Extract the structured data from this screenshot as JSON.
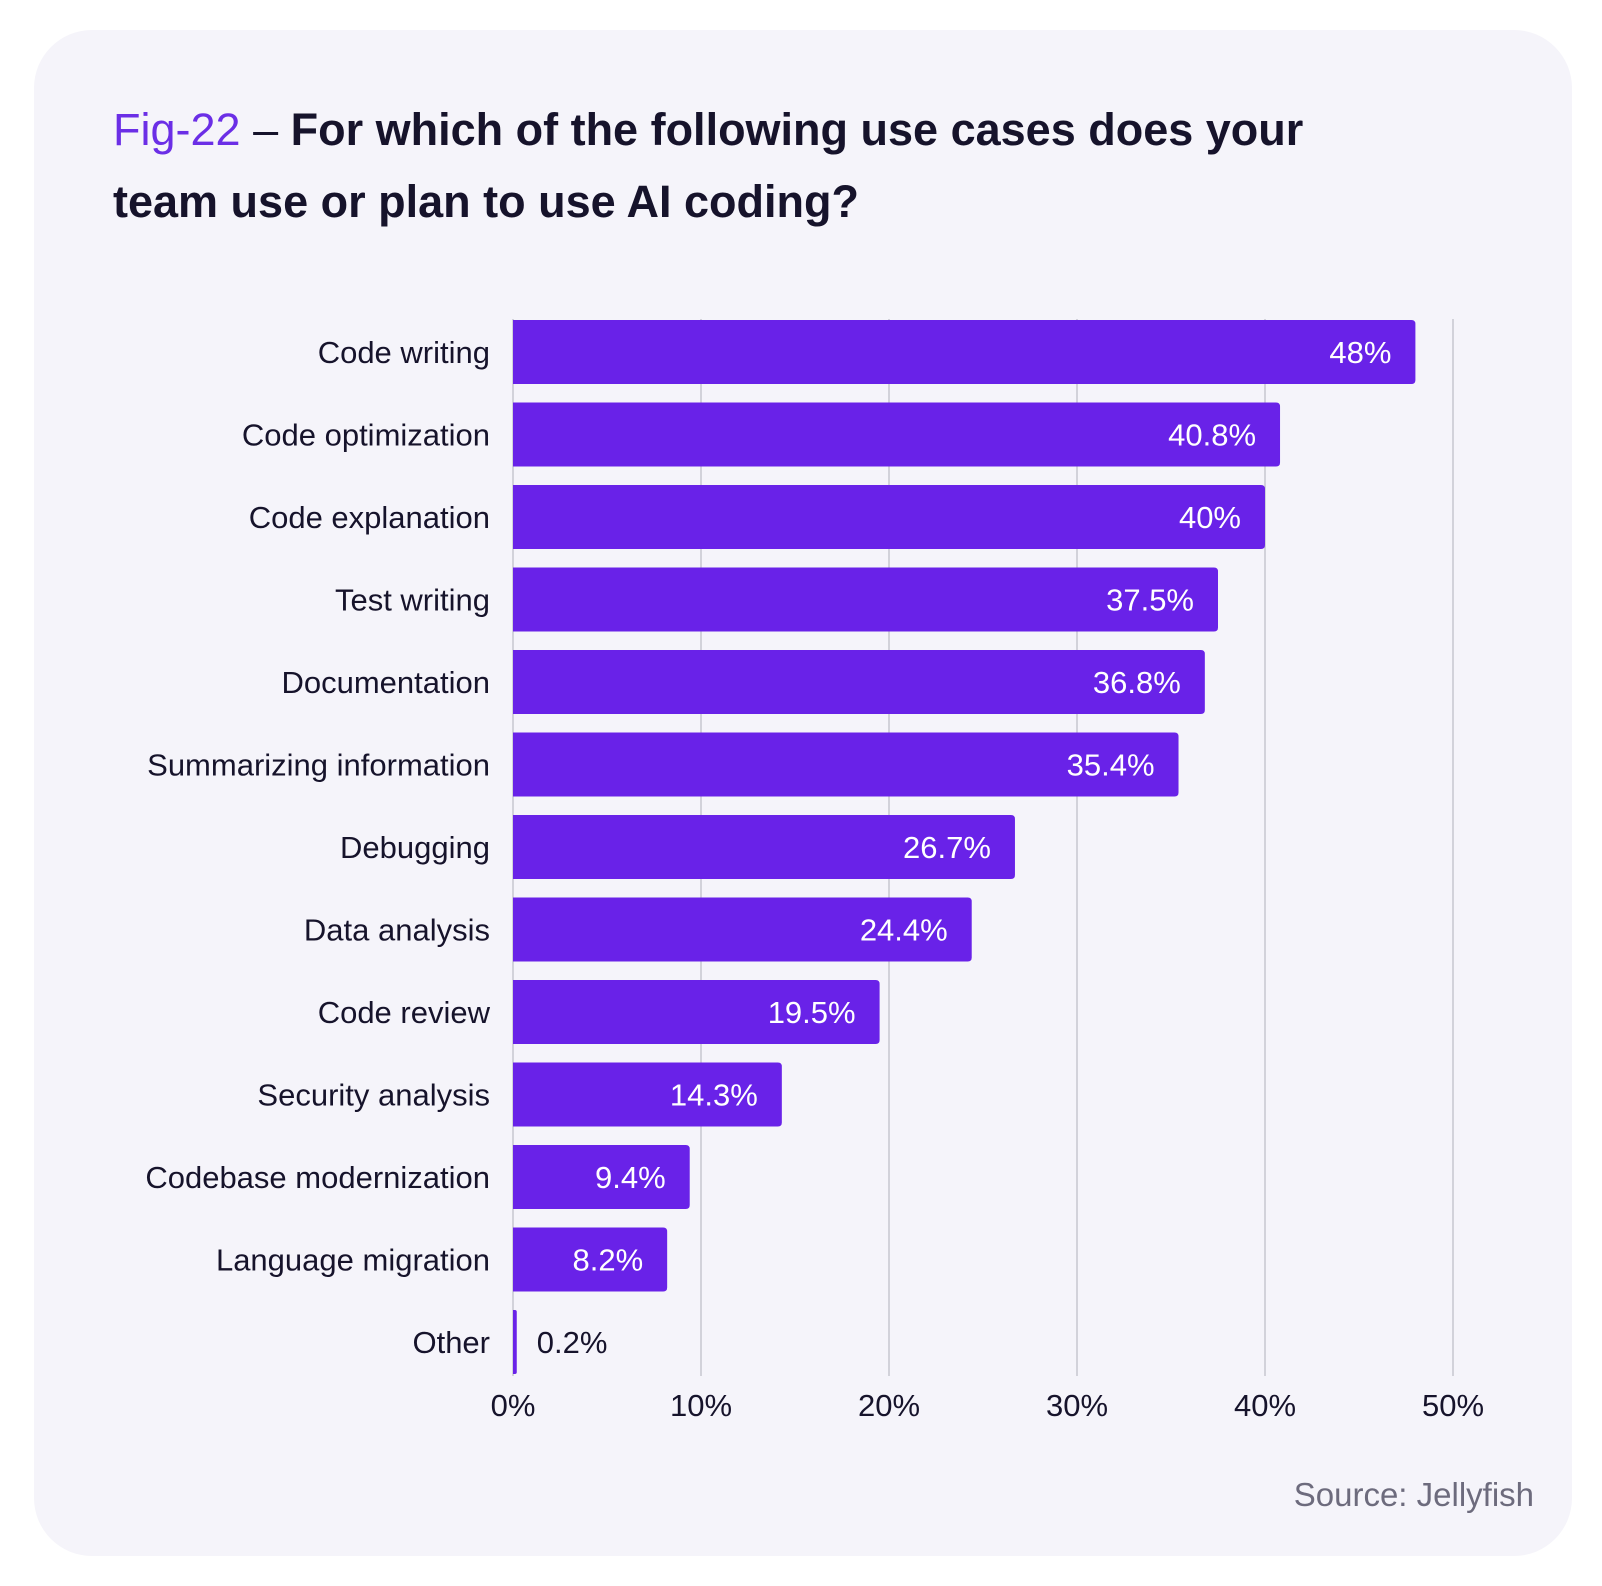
{
  "figure": {
    "fig_number": "Fig-22",
    "separator": " – ",
    "question": "For which of the following use cases does your team use or plan to use AI coding?",
    "source": "Source: Jellyfish"
  },
  "colors": {
    "card_background": "#f5f4fa",
    "bar": "#6922e8",
    "fig_accent": "#6b2ee6",
    "text": "#16132b",
    "gridline": "#c7c6cf",
    "source_text": "#6d6b7d"
  },
  "chart_data": {
    "type": "bar",
    "orientation": "horizontal",
    "categories": [
      "Code writing",
      "Code optimization",
      "Code explanation",
      "Test writing",
      "Documentation",
      "Summarizing information",
      "Debugging",
      "Data analysis",
      "Code review",
      "Security analysis",
      "Codebase modernization",
      "Language migration",
      "Other"
    ],
    "values": [
      48,
      40.8,
      40,
      37.5,
      36.8,
      35.4,
      26.7,
      24.4,
      19.5,
      14.3,
      9.4,
      8.2,
      0.2
    ],
    "value_labels": [
      "48%",
      "40.8%",
      "40%",
      "37.5%",
      "36.8%",
      "35.4%",
      "26.7%",
      "24.4%",
      "19.5%",
      "14.3%",
      "9.4%",
      "8.2%",
      "0.2%"
    ],
    "xlim": [
      0,
      50
    ],
    "xticks": [
      0,
      10,
      20,
      30,
      40,
      50
    ],
    "xtick_labels": [
      "0%",
      "10%",
      "20%",
      "30%",
      "40%",
      "50%"
    ],
    "xlabel": "",
    "ylabel": "",
    "grid": "vertical",
    "legend": "none"
  }
}
